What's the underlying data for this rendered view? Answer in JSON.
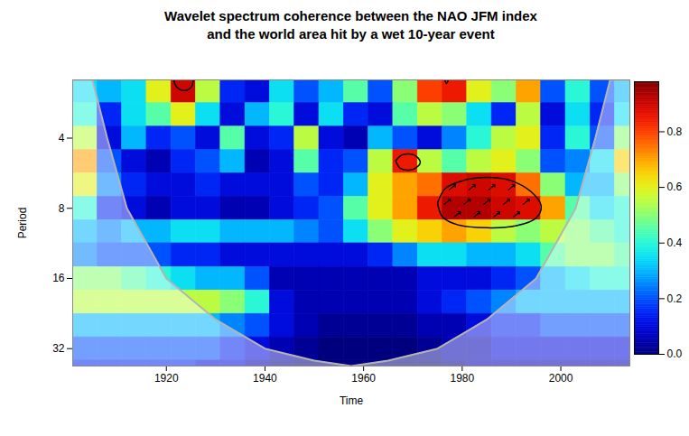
{
  "chart_data": {
    "type": "heatmap",
    "title": "Wavelet spectrum coherence between the NAO JFM index\nand the world area hit by a wet 10-year event",
    "xlabel": "Time",
    "ylabel": "Period",
    "xlim": [
      1901,
      2014
    ],
    "xticks": [
      1920,
      1940,
      1960,
      1980,
      2000
    ],
    "ylim": [
      2.25,
      38
    ],
    "yticks": [
      4,
      8,
      16,
      32
    ],
    "log": "y",
    "x_bins": [
      1901,
      1906,
      1911,
      1916,
      1921,
      1926,
      1931,
      1936,
      1941,
      1946,
      1951,
      1956,
      1961,
      1966,
      1971,
      1976,
      1981,
      1986,
      1991,
      1996,
      2001,
      2006,
      2011,
      2014
    ],
    "y_bins": [
      2.25,
      2.83,
      3.57,
      4.5,
      5.67,
      7.14,
      9,
      11.3,
      14.3,
      18,
      22.7,
      28.6,
      36,
      38
    ],
    "cells": [
      [
        0.35,
        0.3,
        0.35,
        0.6,
        0.9,
        0.55,
        0.15,
        0.1,
        0.35,
        0.2,
        0.3,
        0.45,
        0.2,
        0.5,
        0.8,
        0.85,
        0.6,
        0.5,
        0.7,
        0.2,
        0.4,
        0.2,
        0.3
      ],
      [
        0.4,
        0.15,
        0.35,
        0.45,
        0.6,
        0.35,
        0.1,
        0.3,
        0.4,
        0.1,
        0.35,
        0.15,
        0.1,
        0.45,
        0.55,
        0.5,
        0.35,
        0.15,
        0.55,
        0.1,
        0.35,
        0.15,
        0.35
      ],
      [
        0.55,
        0.1,
        0.3,
        0.15,
        0.2,
        0.1,
        0.45,
        0.1,
        0.15,
        0.55,
        0.1,
        0.05,
        0.3,
        0.2,
        0.1,
        0.25,
        0.4,
        0.55,
        0.6,
        0.15,
        0.4,
        0.2,
        0.5
      ],
      [
        0.7,
        0.2,
        0.1,
        0.05,
        0.15,
        0.2,
        0.3,
        0.05,
        0.1,
        0.45,
        0.15,
        0.2,
        0.55,
        0.85,
        0.55,
        0.45,
        0.55,
        0.6,
        0.5,
        0.2,
        0.25,
        0.35,
        0.65
      ],
      [
        0.6,
        0.25,
        0.15,
        0.1,
        0.1,
        0.15,
        0.1,
        0.1,
        0.1,
        0.2,
        0.15,
        0.3,
        0.6,
        0.7,
        0.75,
        0.88,
        0.9,
        0.88,
        0.75,
        0.5,
        0.3,
        0.3,
        0.5
      ],
      [
        0.4,
        0.15,
        0.1,
        0.05,
        0.1,
        0.1,
        0.05,
        0.05,
        0.1,
        0.15,
        0.2,
        0.45,
        0.6,
        0.7,
        0.85,
        0.93,
        0.93,
        0.9,
        0.88,
        0.7,
        0.45,
        0.35,
        0.4
      ],
      [
        0.3,
        0.25,
        0.3,
        0.3,
        0.35,
        0.35,
        0.3,
        0.3,
        0.3,
        0.25,
        0.2,
        0.35,
        0.5,
        0.6,
        0.65,
        0.7,
        0.65,
        0.55,
        0.5,
        0.55,
        0.5,
        0.45,
        0.4
      ],
      [
        0.25,
        0.2,
        0.2,
        0.2,
        0.15,
        0.15,
        0.1,
        0.1,
        0.1,
        0.1,
        0.1,
        0.1,
        0.15,
        0.25,
        0.35,
        0.35,
        0.3,
        0.3,
        0.35,
        0.45,
        0.5,
        0.5,
        0.45
      ],
      [
        0.5,
        0.5,
        0.45,
        0.4,
        0.35,
        0.3,
        0.3,
        0.2,
        0.05,
        0.05,
        0.05,
        0.05,
        0.05,
        0.05,
        0.1,
        0.1,
        0.1,
        0.15,
        0.2,
        0.3,
        0.35,
        0.4,
        0.4
      ],
      [
        0.55,
        0.55,
        0.55,
        0.55,
        0.55,
        0.55,
        0.5,
        0.4,
        0.1,
        0.05,
        0.05,
        0.05,
        0.05,
        0.05,
        0.1,
        0.15,
        0.2,
        0.25,
        0.3,
        0.3,
        0.3,
        0.3,
        0.3
      ],
      [
        0.3,
        0.3,
        0.3,
        0.3,
        0.3,
        0.3,
        0.25,
        0.2,
        0.1,
        0.05,
        0.02,
        0.02,
        0.02,
        0.02,
        0.05,
        0.05,
        0.1,
        0.15,
        0.15,
        0.2,
        0.2,
        0.2,
        0.2
      ],
      [
        0.2,
        0.2,
        0.2,
        0.2,
        0.2,
        0.2,
        0.15,
        0.1,
        0.05,
        0.02,
        0.0,
        0.0,
        0.0,
        0.0,
        0.02,
        0.05,
        0.05,
        0.1,
        0.1,
        0.1,
        0.1,
        0.1,
        0.1
      ],
      [
        0.15,
        0.15,
        0.15,
        0.15,
        0.15,
        0.1,
        0.1,
        0.05,
        0.02,
        0.0,
        0.0,
        0.0,
        0.0,
        0.0,
        0.0,
        0.02,
        0.05,
        0.05,
        0.05,
        0.05,
        0.05,
        0.05,
        0.05
      ]
    ],
    "colorbar": {
      "range": [
        0,
        0.98
      ],
      "ticks": [
        {
          "value": 0,
          "label": "0.0"
        },
        0.2,
        0.4,
        0.6,
        0.8
      ],
      "colors": [
        "#00007f",
        "#0000ff",
        "#007fff",
        "#00ffff",
        "#7fff7f",
        "#ffff00",
        "#ff7f00",
        "#ff0000",
        "#7f0000"
      ]
    },
    "cone_of_influence": {
      "x": [
        1901,
        1905,
        1908,
        1912,
        1920,
        1930,
        1940,
        1950,
        1957.5,
        1965,
        1975,
        1985,
        1995,
        2003,
        2007,
        2010,
        2014
      ],
      "period": [
        2.25,
        2.25,
        4,
        8,
        16,
        24,
        32,
        36,
        38,
        36,
        32,
        24,
        16,
        8,
        4,
        2.25,
        2.25
      ]
    },
    "significance_contours": [
      {
        "x": [
          1975,
          1976.5,
          1980,
          1985,
          1990,
          1994,
          1996,
          1995,
          1991,
          1985,
          1979,
          1976,
          1975
        ],
        "period": [
          7.6,
          6.6,
          6.1,
          5.9,
          6.1,
          6.8,
          7.8,
          8.8,
          9.5,
          9.7,
          9.4,
          8.7,
          7.6
        ]
      },
      {
        "x": [
          1966.5,
          1968,
          1970.5,
          1971.5,
          1970,
          1967.5,
          1966.5
        ],
        "period": [
          5.0,
          4.7,
          4.75,
          5.1,
          5.45,
          5.4,
          5.0
        ]
      },
      {
        "x": [
          1921.5,
          1922,
          1923.5,
          1925,
          1925.5
        ],
        "period": [
          2.25,
          2.4,
          2.5,
          2.42,
          2.25
        ]
      },
      {
        "x": [
          1976.5,
          1976.8,
          1977.2
        ],
        "period": [
          2.25,
          2.33,
          2.25
        ]
      }
    ],
    "phase_arrows": {
      "x": [
        1978,
        1982,
        1986,
        1990,
        1977,
        1981,
        1985,
        1989,
        1993,
        1979,
        1983,
        1987,
        1991
      ],
      "period": [
        6.5,
        6.5,
        6.5,
        6.5,
        7.5,
        7.5,
        7.5,
        7.5,
        7.5,
        8.5,
        8.5,
        8.5,
        8.5
      ],
      "phase": [
        40,
        40,
        40,
        40,
        40,
        40,
        40,
        40,
        40,
        40,
        40,
        40,
        40
      ]
    }
  }
}
